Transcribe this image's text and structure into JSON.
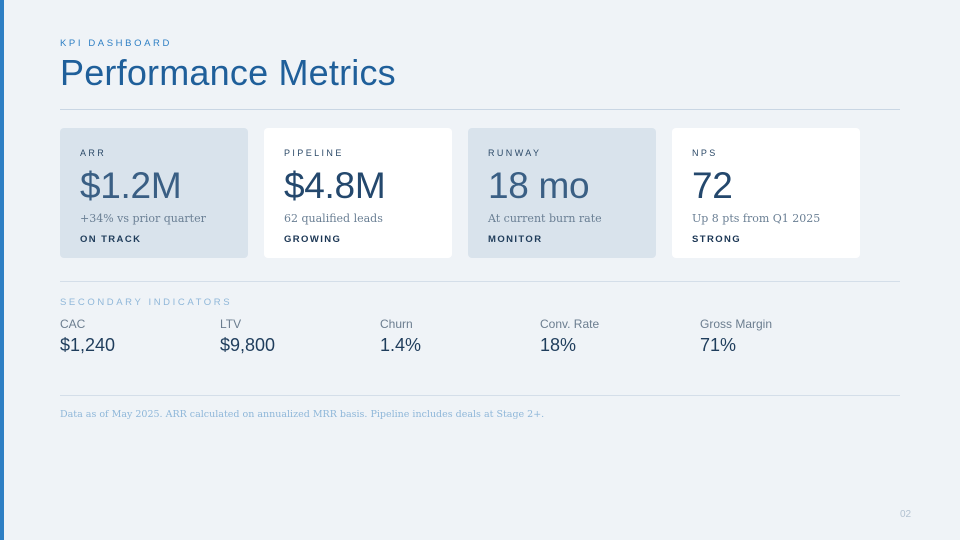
{
  "header": {
    "eyebrow": "KPI DASHBOARD",
    "title": "Performance Metrics"
  },
  "cards": [
    {
      "label": "ARR",
      "value": "$1.2M",
      "note": "+34% vs prior quarter",
      "status": "ON TRACK",
      "style": "tinted"
    },
    {
      "label": "PIPELINE",
      "value": "$4.8M",
      "note": "62 qualified leads",
      "status": "GROWING",
      "style": "white"
    },
    {
      "label": "RUNWAY",
      "value": "18 mo",
      "note": "At current burn rate",
      "status": "MONITOR",
      "style": "tinted"
    },
    {
      "label": "NPS",
      "value": "72",
      "note": "Up 8 pts from Q1 2025",
      "status": "STRONG",
      "style": "white"
    }
  ],
  "secondary": {
    "heading": "SECONDARY INDICATORS",
    "metrics": [
      {
        "label": "CAC",
        "value": "$1,240"
      },
      {
        "label": "LTV",
        "value": "$9,800"
      },
      {
        "label": "Churn",
        "value": "1.4%"
      },
      {
        "label": "Conv. Rate",
        "value": "18%"
      },
      {
        "label": "Gross Margin",
        "value": "71%"
      }
    ]
  },
  "footnote": "Data as of May 2025. ARR calculated on annualized MRR basis. Pipeline includes deals at Stage 2+.",
  "page_number": "02",
  "colors": {
    "accent": "#2e7fc4",
    "title": "#1f5f9a",
    "background": "#eff3f7",
    "card_tinted": "#d9e3ec",
    "card_white": "#ffffff"
  }
}
